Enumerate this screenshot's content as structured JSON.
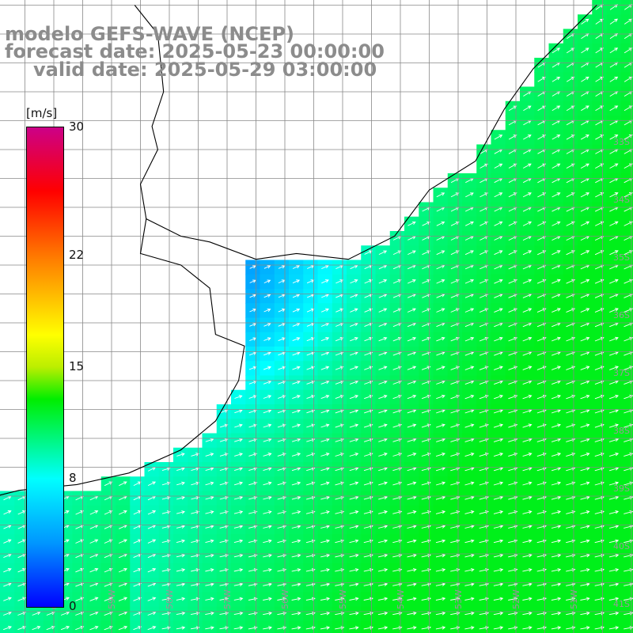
{
  "title": {
    "model_line": "modelo GEFS-WAVE (NCEP)",
    "forecast_line": "forecast date: 2025-05-23 00:00:00",
    "valid_line": "valid date: 2025-05-29 03:00:00"
  },
  "colorbar": {
    "unit": "[m/s]",
    "min": 0,
    "max": 30,
    "ticks": [
      "30",
      "22",
      "15",
      "8",
      "0"
    ],
    "tick_values": [
      30,
      22,
      15,
      8,
      0
    ],
    "stops": [
      {
        "v": 0,
        "color": "#0000ff"
      },
      {
        "v": 4,
        "color": "#0096ff"
      },
      {
        "v": 8,
        "color": "#00ffff"
      },
      {
        "v": 13,
        "color": "#00ee00"
      },
      {
        "v": 15,
        "color": "#bbee00"
      },
      {
        "v": 17,
        "color": "#ffff00"
      },
      {
        "v": 22,
        "color": "#ff7700"
      },
      {
        "v": 26,
        "color": "#ff0000"
      },
      {
        "v": 30,
        "color": "#cc0088"
      }
    ]
  },
  "map": {
    "lon_range": [
      -61,
      -50
    ],
    "lat_range": [
      -41.5,
      -30.5
    ],
    "lat_labels": [
      "33S",
      "34S",
      "35S",
      "36S",
      "37S",
      "38S",
      "39S",
      "40S",
      "41S"
    ],
    "lon_labels": [
      "61W",
      "60W",
      "59W",
      "58W",
      "57W",
      "56W",
      "55W",
      "54W",
      "53W",
      "52W",
      "51W"
    ],
    "coastline": [
      [
        -50.6,
        -30.5
      ],
      [
        -51.0,
        -30.9
      ],
      [
        -51.7,
        -31.6
      ],
      [
        -52.2,
        -32.3
      ],
      [
        -52.7,
        -33.2
      ],
      [
        -53.5,
        -33.7
      ],
      [
        -54.1,
        -34.5
      ],
      [
        -54.9,
        -34.9
      ],
      [
        -55.8,
        -34.8
      ],
      [
        -56.5,
        -34.9
      ],
      [
        -57.3,
        -34.6
      ],
      [
        -57.8,
        -34.5
      ],
      [
        -58.4,
        -34.2
      ],
      [
        -58.5,
        -34.8
      ],
      [
        -57.8,
        -35.0
      ],
      [
        -57.3,
        -35.4
      ],
      [
        -57.2,
        -36.2
      ],
      [
        -56.7,
        -36.4
      ],
      [
        -56.8,
        -37.0
      ],
      [
        -57.2,
        -37.7
      ],
      [
        -57.8,
        -38.2
      ],
      [
        -58.7,
        -38.6
      ],
      [
        -59.6,
        -38.8
      ],
      [
        -60.6,
        -38.9
      ],
      [
        -61.0,
        -39.0
      ]
    ],
    "border": [
      [
        -58.6,
        -30.5
      ],
      [
        -58.2,
        -31.0
      ],
      [
        -58.1,
        -32.0
      ],
      [
        -58.3,
        -32.6
      ],
      [
        -58.2,
        -33.0
      ],
      [
        -58.5,
        -33.6
      ],
      [
        -58.4,
        -34.2
      ]
    ],
    "wind_field": {
      "description": "10 m wind speed (shaded) and direction (arrows), generally from SW to NE",
      "speed_min_ms": 2,
      "speed_max_ms": 12
    }
  }
}
